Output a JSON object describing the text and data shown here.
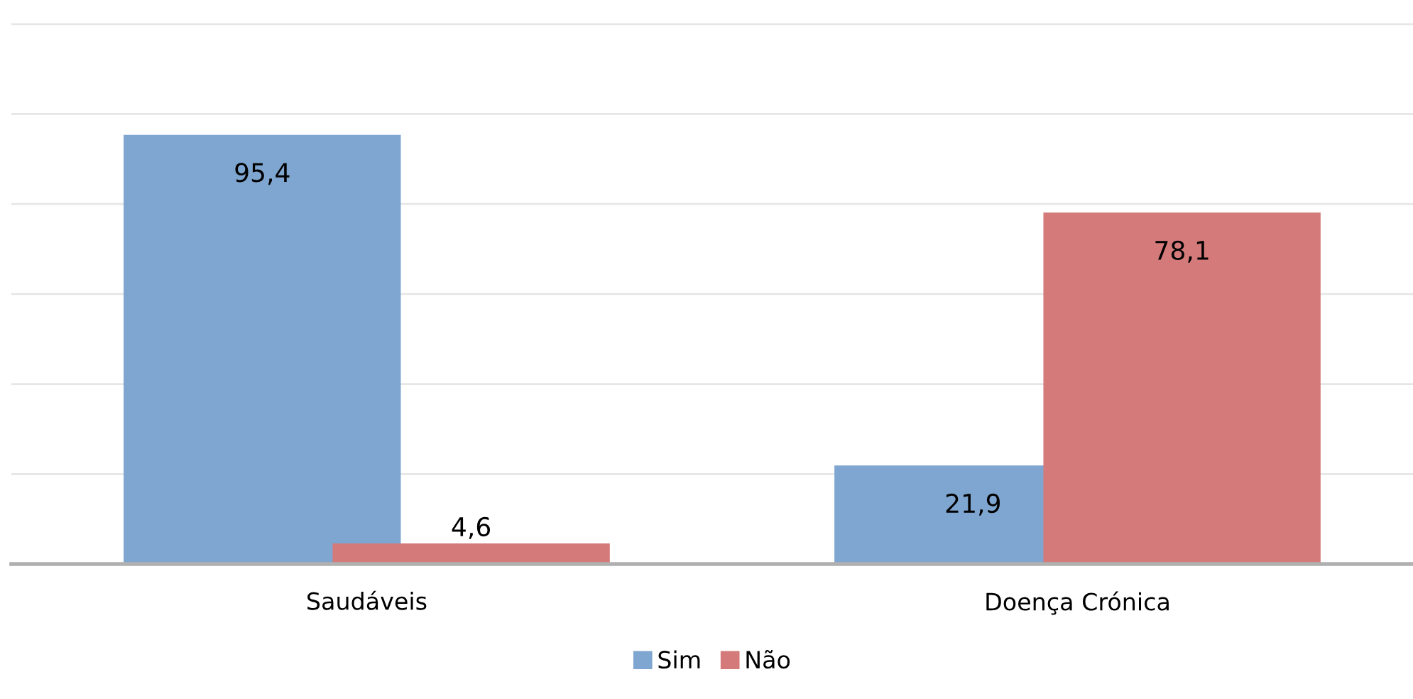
{
  "chart_data": {
    "type": "bar",
    "categories": [
      "Saudáveis",
      "Doença Crónica"
    ],
    "series": [
      {
        "name": "Sim",
        "color": "#7fa6d0",
        "values": [
          95.4,
          21.9
        ],
        "value_labels": [
          "95,4",
          "21,9"
        ]
      },
      {
        "name": "Não",
        "color": "#d57a7a",
        "values": [
          4.6,
          78.1
        ],
        "value_labels": [
          "4,6",
          "78,1"
        ]
      }
    ],
    "tick_labels": "x",
    "grid": "y",
    "legend": "bottom"
  }
}
